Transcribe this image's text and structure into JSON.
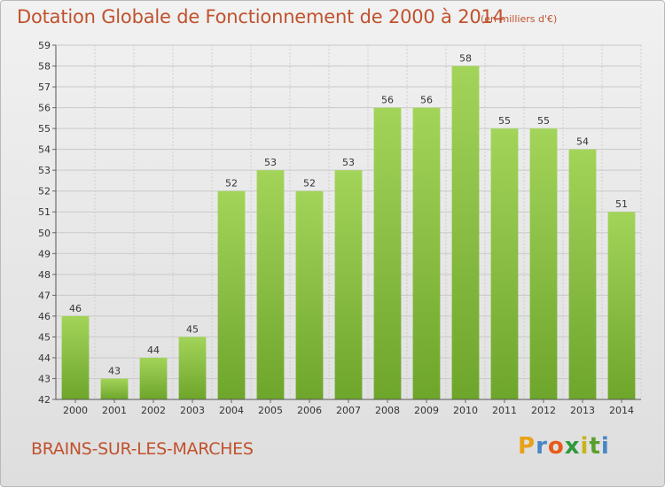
{
  "header": {
    "title": "Dotation Globale de Fonctionnement de 2000 à 2014",
    "subtitle": "(en milliers d'€)"
  },
  "footer": {
    "commune": "BRAINS-SUR-LES-MARCHES",
    "logo_letters": [
      "P",
      "r",
      "o",
      "x",
      "i",
      "t",
      "i"
    ]
  },
  "chart_data": {
    "type": "bar",
    "title": "Dotation Globale de Fonctionnement de 2000 à 2014",
    "subtitle": "(en milliers d'€)",
    "xlabel": "",
    "ylabel": "",
    "categories": [
      "2000",
      "2001",
      "2002",
      "2003",
      "2004",
      "2005",
      "2006",
      "2007",
      "2008",
      "2009",
      "2010",
      "2011",
      "2012",
      "2013",
      "2014"
    ],
    "values": [
      46,
      43,
      44,
      45,
      52,
      53,
      52,
      53,
      56,
      56,
      58,
      55,
      55,
      54,
      51
    ],
    "ylim": [
      42,
      59
    ],
    "yticks": [
      42,
      43,
      44,
      45,
      46,
      47,
      48,
      49,
      50,
      51,
      52,
      53,
      54,
      55,
      56,
      57,
      58,
      59
    ],
    "grid": true,
    "bar_color_top": "#a3d45a",
    "bar_color_bottom": "#6ea52b"
  }
}
